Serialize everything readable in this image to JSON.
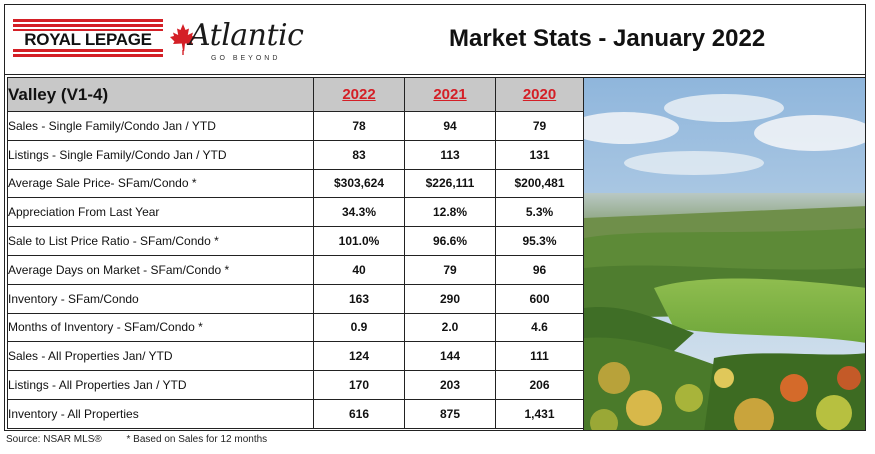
{
  "header": {
    "brand_name": "ROYAL LEPAGE",
    "brand_script": "Atlantic",
    "brand_tagline": "GO BEYOND",
    "title": "Market Stats - January 2022"
  },
  "table": {
    "region": "Valley (V1-4)",
    "years": [
      "2022",
      "2021",
      "2020"
    ],
    "rows": [
      {
        "label": "Sales - Single Family/Condo Jan / YTD",
        "values": [
          "78",
          "94",
          "79"
        ]
      },
      {
        "label": "Listings - Single Family/Condo Jan / YTD",
        "values": [
          "83",
          "113",
          "131"
        ]
      },
      {
        "label": "Average Sale Price- SFam/Condo *",
        "values": [
          "$303,624",
          "$226,111",
          "$200,481"
        ]
      },
      {
        "label": "Appreciation From Last Year",
        "values": [
          "34.3%",
          "12.8%",
          "5.3%"
        ]
      },
      {
        "label": "Sale to List Price Ratio - SFam/Condo *",
        "values": [
          "101.0%",
          "96.6%",
          "95.3%"
        ]
      },
      {
        "label": "Average Days on Market - SFam/Condo *",
        "values": [
          "40",
          "79",
          "96"
        ]
      },
      {
        "label": "Inventory - SFam/Condo",
        "values": [
          "163",
          "290",
          "600"
        ]
      },
      {
        "label": "Months of Inventory - SFam/Condo *",
        "values": [
          "0.9",
          "2.0",
          "4.6"
        ]
      },
      {
        "label": "Sales - All Properties Jan/ YTD",
        "values": [
          "124",
          "144",
          "111"
        ]
      },
      {
        "label": "Listings - All Properties Jan / YTD",
        "values": [
          "170",
          "203",
          "206"
        ]
      },
      {
        "label": "Inventory - All Properties",
        "values": [
          "616",
          "875",
          "1,431"
        ]
      }
    ]
  },
  "footer": {
    "source": "Source: NSAR MLS®",
    "note": "* Based on Sales for 12 months"
  },
  "colors": {
    "brand_red": "#d41f26",
    "header_gray": "#c8c8c8"
  }
}
